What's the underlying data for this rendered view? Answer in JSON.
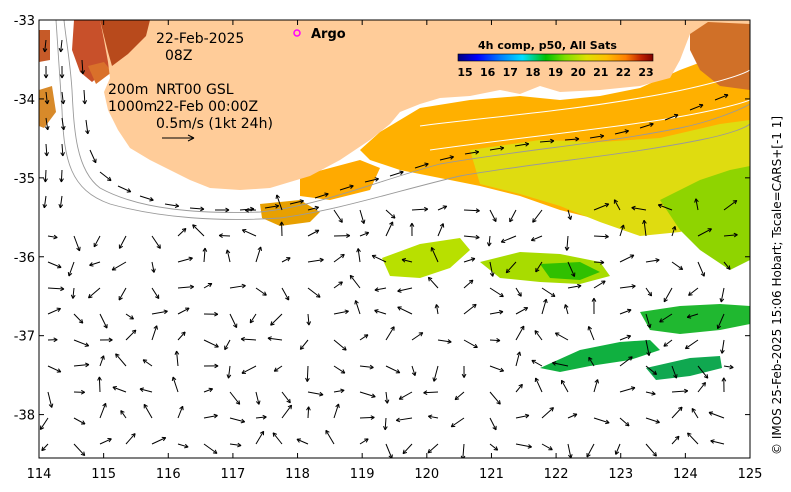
{
  "map": {
    "date_label": "22-Feb-2025",
    "time_label": "08Z",
    "argo_label": "Argo",
    "depth_label_1": "200m",
    "depth_label_2": "1000m",
    "product_label": "NRT00 GSL",
    "product_time_label": "22-Feb 00:00Z",
    "velocity_scale_label": "0.5m/s (1kt 24h)",
    "credit": "© IMOS 25-Feb-2025 15:06 Hobart; Tscale=CARS+[-1 1]",
    "land_color": "#ffcc99",
    "ocean_color": "#ffffff"
  },
  "chart_data": {
    "type": "heatmap",
    "x_ticks": [
      "114",
      "115",
      "116",
      "117",
      "118",
      "119",
      "120",
      "121",
      "122",
      "123",
      "124",
      "125"
    ],
    "y_ticks": [
      "-33",
      "-34",
      "-35",
      "-36",
      "-37",
      "-38"
    ],
    "xlim": [
      114,
      125
    ],
    "ylim": [
      -38.55,
      -33
    ],
    "colorbar": {
      "title": "4h comp, p50, All Sats",
      "ticks": [
        "15",
        "16",
        "17",
        "18",
        "19",
        "20",
        "21",
        "22",
        "23"
      ],
      "colors": [
        "#00007f",
        "#0000ff",
        "#007fff",
        "#00dfff",
        "#00c000",
        "#7fdf00",
        "#dfe000",
        "#ffbf00",
        "#ff7f00",
        "#bf2000",
        "#7f0000"
      ]
    },
    "argo_float": {
      "lon": 118.0,
      "lat": -33.2
    }
  }
}
